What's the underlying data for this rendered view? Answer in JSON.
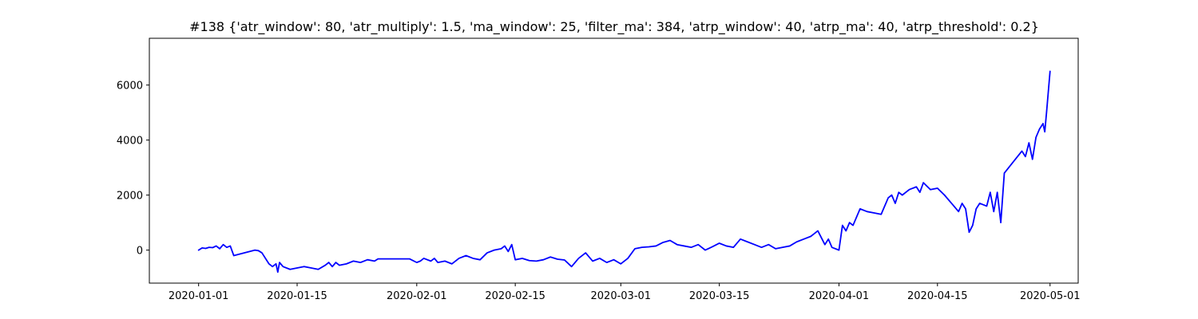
{
  "chart_data": {
    "type": "line",
    "title": "#138 {'atr_window': 80, 'atr_multiply': 1.5, 'ma_window': 25, 'filter_ma': 384, 'atrp_window': 40, 'atrp_ma': 40, 'atrp_threshold': 0.2}",
    "xlabel": "",
    "ylabel": "",
    "x_type": "date",
    "xlim": [
      "2019-12-25",
      "2020-05-05"
    ],
    "ylim": [
      -1200,
      7700
    ],
    "grid": false,
    "x_ticks": [
      {
        "value": "2020-01-01",
        "label": "2020-01-01"
      },
      {
        "value": "2020-01-15",
        "label": "2020-01-15"
      },
      {
        "value": "2020-02-01",
        "label": "2020-02-01"
      },
      {
        "value": "2020-02-15",
        "label": "2020-02-15"
      },
      {
        "value": "2020-03-01",
        "label": "2020-03-01"
      },
      {
        "value": "2020-03-15",
        "label": "2020-03-15"
      },
      {
        "value": "2020-04-01",
        "label": "2020-04-01"
      },
      {
        "value": "2020-04-15",
        "label": "2020-04-15"
      },
      {
        "value": "2020-05-01",
        "label": "2020-05-01"
      }
    ],
    "y_ticks": [
      {
        "value": 0,
        "label": "0"
      },
      {
        "value": 2000,
        "label": "2000"
      },
      {
        "value": 4000,
        "label": "4000"
      },
      {
        "value": 6000,
        "label": "6000"
      }
    ],
    "series": [
      {
        "color": "#0000ff",
        "points": [
          [
            "2020-01-01",
            0
          ],
          [
            "2020-01-01T12:00",
            80
          ],
          [
            "2020-01-02",
            60
          ],
          [
            "2020-01-02T12:00",
            100
          ],
          [
            "2020-01-03",
            90
          ],
          [
            "2020-01-03T12:00",
            150
          ],
          [
            "2020-01-04",
            50
          ],
          [
            "2020-01-04T12:00",
            200
          ],
          [
            "2020-01-05",
            100
          ],
          [
            "2020-01-05T12:00",
            150
          ],
          [
            "2020-01-06",
            -200
          ],
          [
            "2020-01-09",
            0
          ],
          [
            "2020-01-09T12:00",
            -20
          ],
          [
            "2020-01-10",
            -100
          ],
          [
            "2020-01-11",
            -500
          ],
          [
            "2020-01-11T12:00",
            -600
          ],
          [
            "2020-01-12",
            -500
          ],
          [
            "2020-01-12T06:00",
            -800
          ],
          [
            "2020-01-12T12:00",
            -450
          ],
          [
            "2020-01-13",
            -600
          ],
          [
            "2020-01-14",
            -700
          ],
          [
            "2020-01-15",
            -650
          ],
          [
            "2020-01-16",
            -600
          ],
          [
            "2020-01-17",
            -650
          ],
          [
            "2020-01-18",
            -700
          ],
          [
            "2020-01-19",
            -550
          ],
          [
            "2020-01-19T12:00",
            -450
          ],
          [
            "2020-01-20",
            -600
          ],
          [
            "2020-01-20T12:00",
            -450
          ],
          [
            "2020-01-21",
            -550
          ],
          [
            "2020-01-22",
            -500
          ],
          [
            "2020-01-23",
            -400
          ],
          [
            "2020-01-24",
            -450
          ],
          [
            "2020-01-25",
            -350
          ],
          [
            "2020-01-26",
            -400
          ],
          [
            "2020-01-26T12:00",
            -320
          ],
          [
            "2020-01-31",
            -320
          ],
          [
            "2020-02-01",
            -450
          ],
          [
            "2020-02-01T12:00",
            -400
          ],
          [
            "2020-02-02",
            -300
          ],
          [
            "2020-02-03",
            -400
          ],
          [
            "2020-02-03T12:00",
            -300
          ],
          [
            "2020-02-04",
            -450
          ],
          [
            "2020-02-05",
            -400
          ],
          [
            "2020-02-06",
            -500
          ],
          [
            "2020-02-07",
            -300
          ],
          [
            "2020-02-08",
            -200
          ],
          [
            "2020-02-09",
            -300
          ],
          [
            "2020-02-10",
            -350
          ],
          [
            "2020-02-11",
            -100
          ],
          [
            "2020-02-12",
            0
          ],
          [
            "2020-02-13",
            50
          ],
          [
            "2020-02-13T12:00",
            150
          ],
          [
            "2020-02-14",
            -50
          ],
          [
            "2020-02-14T12:00",
            200
          ],
          [
            "2020-02-15",
            -350
          ],
          [
            "2020-02-16",
            -300
          ],
          [
            "2020-02-17",
            -380
          ],
          [
            "2020-02-18",
            -400
          ],
          [
            "2020-02-19",
            -350
          ],
          [
            "2020-02-20",
            -250
          ],
          [
            "2020-02-21",
            -330
          ],
          [
            "2020-02-22",
            -360
          ],
          [
            "2020-02-23",
            -600
          ],
          [
            "2020-02-24",
            -300
          ],
          [
            "2020-02-25",
            -100
          ],
          [
            "2020-02-26",
            -400
          ],
          [
            "2020-02-27",
            -300
          ],
          [
            "2020-02-28",
            -450
          ],
          [
            "2020-02-29",
            -350
          ],
          [
            "2020-03-01",
            -500
          ],
          [
            "2020-03-02",
            -300
          ],
          [
            "2020-03-03",
            50
          ],
          [
            "2020-03-04",
            100
          ],
          [
            "2020-03-05",
            120
          ],
          [
            "2020-03-06",
            150
          ],
          [
            "2020-03-07",
            280
          ],
          [
            "2020-03-08",
            350
          ],
          [
            "2020-03-09",
            200
          ],
          [
            "2020-03-10",
            150
          ],
          [
            "2020-03-11",
            100
          ],
          [
            "2020-03-12",
            200
          ],
          [
            "2020-03-13",
            0
          ],
          [
            "2020-03-14",
            120
          ],
          [
            "2020-03-15",
            250
          ],
          [
            "2020-03-16",
            150
          ],
          [
            "2020-03-17",
            100
          ],
          [
            "2020-03-18",
            400
          ],
          [
            "2020-03-19",
            300
          ],
          [
            "2020-03-20",
            200
          ],
          [
            "2020-03-21",
            100
          ],
          [
            "2020-03-22",
            200
          ],
          [
            "2020-03-23",
            50
          ],
          [
            "2020-03-24",
            100
          ],
          [
            "2020-03-25",
            150
          ],
          [
            "2020-03-26",
            300
          ],
          [
            "2020-03-27",
            400
          ],
          [
            "2020-03-28",
            500
          ],
          [
            "2020-03-29",
            700
          ],
          [
            "2020-03-30",
            200
          ],
          [
            "2020-03-30T12:00",
            400
          ],
          [
            "2020-03-31",
            100
          ],
          [
            "2020-04-01",
            0
          ],
          [
            "2020-04-01T12:00",
            900
          ],
          [
            "2020-04-02",
            700
          ],
          [
            "2020-04-02T12:00",
            1000
          ],
          [
            "2020-04-03",
            900
          ],
          [
            "2020-04-04",
            1500
          ],
          [
            "2020-04-05",
            1400
          ],
          [
            "2020-04-06",
            1350
          ],
          [
            "2020-04-07",
            1300
          ],
          [
            "2020-04-08",
            1900
          ],
          [
            "2020-04-08T12:00",
            2000
          ],
          [
            "2020-04-09",
            1700
          ],
          [
            "2020-04-09T12:00",
            2100
          ],
          [
            "2020-04-10",
            2000
          ],
          [
            "2020-04-11",
            2200
          ],
          [
            "2020-04-12",
            2300
          ],
          [
            "2020-04-12T12:00",
            2100
          ],
          [
            "2020-04-13",
            2450
          ],
          [
            "2020-04-14",
            2200
          ],
          [
            "2020-04-15",
            2250
          ],
          [
            "2020-04-16",
            2000
          ],
          [
            "2020-04-17",
            1700
          ],
          [
            "2020-04-18",
            1400
          ],
          [
            "2020-04-18T12:00",
            1700
          ],
          [
            "2020-04-19",
            1500
          ],
          [
            "2020-04-19T12:00",
            650
          ],
          [
            "2020-04-20",
            900
          ],
          [
            "2020-04-20T12:00",
            1500
          ],
          [
            "2020-04-21",
            1700
          ],
          [
            "2020-04-22",
            1600
          ],
          [
            "2020-04-22T12:00",
            2100
          ],
          [
            "2020-04-23",
            1400
          ],
          [
            "2020-04-23T12:00",
            2100
          ],
          [
            "2020-04-24",
            1000
          ],
          [
            "2020-04-24T12:00",
            2800
          ],
          [
            "2020-04-27",
            3600
          ],
          [
            "2020-04-27T12:00",
            3400
          ],
          [
            "2020-04-28",
            3900
          ],
          [
            "2020-04-28T12:00",
            3300
          ],
          [
            "2020-04-29",
            4100
          ],
          [
            "2020-04-29T12:00",
            4400
          ],
          [
            "2020-04-30",
            4600
          ],
          [
            "2020-04-30T06:00",
            4300
          ],
          [
            "2020-04-30T12:00",
            5000
          ],
          [
            "2020-05-01",
            6500
          ]
        ]
      }
    ]
  }
}
